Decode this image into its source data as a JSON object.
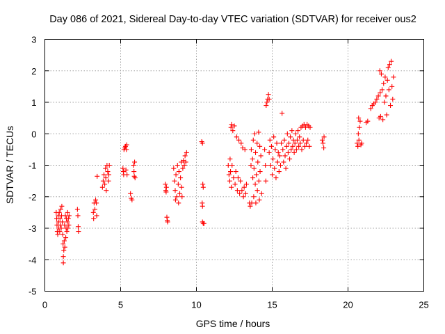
{
  "chart_data": {
    "type": "scatter",
    "title": "Day 086 of 2021, Sidereal Day-to-day VTEC variation (SDTVAR) for receiver ous2",
    "xlabel": "GPS time / hours",
    "ylabel": "SDTVAR / TECUs",
    "xlim": [
      0,
      25
    ],
    "ylim": [
      -5,
      3
    ],
    "xticks": [
      0,
      5,
      10,
      15,
      20,
      25
    ],
    "yticks": [
      -5,
      -4,
      -3,
      -2,
      -1,
      0,
      1,
      2,
      3
    ],
    "xtick_labels": [
      "0",
      "5",
      "10",
      "15",
      "20",
      "25"
    ],
    "ytick_labels": [
      "-5",
      "-4",
      "-3",
      "-2",
      "-1",
      "0",
      "1",
      "2",
      "3"
    ],
    "grid": true,
    "legend": "none",
    "marker": "plus",
    "color": "#ff0000",
    "series": [
      {
        "points": [
          [
            0.75,
            -2.5
          ],
          [
            0.78,
            -2.7
          ],
          [
            0.8,
            -2.9
          ],
          [
            0.82,
            -3.1
          ],
          [
            0.85,
            -3.2
          ],
          [
            0.88,
            -2.6
          ],
          [
            0.9,
            -2.8
          ],
          [
            0.92,
            -3.0
          ],
          [
            0.95,
            -2.5
          ],
          [
            0.98,
            -3.1
          ],
          [
            1.0,
            -2.7
          ],
          [
            1.02,
            -2.9
          ],
          [
            1.05,
            -2.4
          ],
          [
            1.08,
            -3.0
          ],
          [
            1.1,
            -2.6
          ],
          [
            1.12,
            -2.3
          ],
          [
            1.15,
            -2.8
          ],
          [
            1.18,
            -3.2
          ],
          [
            1.2,
            -3.5
          ],
          [
            1.22,
            -3.9
          ],
          [
            1.22,
            -4.1
          ],
          [
            1.25,
            -3.7
          ],
          [
            1.28,
            -3.4
          ],
          [
            1.3,
            -2.9
          ],
          [
            1.32,
            -3.6
          ],
          [
            1.35,
            -2.6
          ],
          [
            1.38,
            -3.3
          ],
          [
            1.4,
            -3.0
          ],
          [
            1.42,
            -2.7
          ],
          [
            1.45,
            -3.1
          ],
          [
            1.48,
            -2.8
          ],
          [
            1.5,
            -2.5
          ],
          [
            1.52,
            -3.0
          ],
          [
            1.55,
            -2.7
          ],
          [
            1.58,
            -2.9
          ],
          [
            1.6,
            -2.6
          ],
          [
            2.15,
            -2.4
          ],
          [
            2.18,
            -2.6
          ],
          [
            2.2,
            -2.95
          ],
          [
            2.22,
            -3.1
          ],
          [
            3.2,
            -2.5
          ],
          [
            3.22,
            -2.7
          ],
          [
            3.25,
            -2.2
          ],
          [
            3.3,
            -2.4
          ],
          [
            3.35,
            -2.1
          ],
          [
            3.4,
            -2.2
          ],
          [
            3.42,
            -2.6
          ],
          [
            3.45,
            -1.35
          ],
          [
            3.8,
            -1.7
          ],
          [
            3.85,
            -1.5
          ],
          [
            3.9,
            -1.3
          ],
          [
            3.95,
            -1.6
          ],
          [
            4.0,
            -1.1
          ],
          [
            4.02,
            -1.4
          ],
          [
            4.05,
            -1.8
          ],
          [
            4.1,
            -1.0
          ],
          [
            4.15,
            -1.2
          ],
          [
            4.2,
            -1.5
          ],
          [
            4.22,
            -1.3
          ],
          [
            4.25,
            -1.0
          ],
          [
            5.15,
            -1.1
          ],
          [
            5.18,
            -1.2
          ],
          [
            5.2,
            -1.3
          ],
          [
            5.22,
            -0.5
          ],
          [
            5.28,
            -0.45
          ],
          [
            5.32,
            -0.4
          ],
          [
            5.35,
            -1.15
          ],
          [
            5.38,
            -0.5
          ],
          [
            5.4,
            -0.35
          ],
          [
            5.42,
            -1.3
          ],
          [
            5.65,
            -1.9
          ],
          [
            5.7,
            -2.05
          ],
          [
            5.75,
            -2.1
          ],
          [
            5.85,
            -1.0
          ],
          [
            5.88,
            -1.2
          ],
          [
            5.9,
            -1.35
          ],
          [
            5.92,
            -0.9
          ],
          [
            5.95,
            -1.4
          ],
          [
            7.95,
            -1.6
          ],
          [
            7.98,
            -1.8
          ],
          [
            8.0,
            -1.85
          ],
          [
            8.02,
            -1.7
          ],
          [
            8.05,
            -2.65
          ],
          [
            8.08,
            -2.75
          ],
          [
            8.1,
            -2.8
          ],
          [
            8.5,
            -1.1
          ],
          [
            8.55,
            -1.5
          ],
          [
            8.6,
            -1.8
          ],
          [
            8.62,
            -2.1
          ],
          [
            8.65,
            -1.3
          ],
          [
            8.7,
            -2.0
          ],
          [
            8.75,
            -1.0
          ],
          [
            8.8,
            -1.6
          ],
          [
            8.82,
            -2.2
          ],
          [
            8.85,
            -1.2
          ],
          [
            8.9,
            -1.9
          ],
          [
            8.95,
            -1.4
          ],
          [
            9.0,
            -0.9
          ],
          [
            9.02,
            -1.7
          ],
          [
            9.05,
            -2.0
          ],
          [
            9.1,
            -1.1
          ],
          [
            9.15,
            -0.85
          ],
          [
            9.2,
            -1.0
          ],
          [
            9.25,
            -0.7
          ],
          [
            9.3,
            -0.9
          ],
          [
            9.35,
            -0.6
          ],
          [
            10.35,
            -0.25
          ],
          [
            10.4,
            -0.3
          ],
          [
            10.42,
            -1.6
          ],
          [
            10.45,
            -1.7
          ],
          [
            10.38,
            -2.2
          ],
          [
            10.4,
            -2.3
          ],
          [
            10.4,
            -2.8
          ],
          [
            10.45,
            -2.85
          ],
          [
            10.5,
            -2.85
          ],
          [
            12.1,
            -1.0
          ],
          [
            12.15,
            -1.3
          ],
          [
            12.2,
            -1.5
          ],
          [
            12.22,
            -0.8
          ],
          [
            12.25,
            -1.2
          ],
          [
            12.28,
            0.2
          ],
          [
            12.3,
            -1.7
          ],
          [
            12.32,
            0.3
          ],
          [
            12.35,
            -1.0
          ],
          [
            12.4,
            0.1
          ],
          [
            12.45,
            -1.4
          ],
          [
            12.5,
            0.25
          ],
          [
            12.55,
            -1.6
          ],
          [
            12.6,
            -1.2
          ],
          [
            12.65,
            -0.1
          ],
          [
            12.7,
            -1.8
          ],
          [
            12.75,
            -1.4
          ],
          [
            12.8,
            -0.2
          ],
          [
            12.85,
            -1.9
          ],
          [
            12.9,
            -1.5
          ],
          [
            12.95,
            -0.3
          ],
          [
            13.0,
            -1.8
          ],
          [
            13.05,
            -0.45
          ],
          [
            13.1,
            -2.0
          ],
          [
            13.15,
            -1.7
          ],
          [
            13.2,
            -0.5
          ],
          [
            13.25,
            -1.9
          ],
          [
            13.3,
            -1.6
          ],
          [
            13.5,
            -2.2
          ],
          [
            13.55,
            -2.3
          ],
          [
            13.6,
            -1.0
          ],
          [
            13.62,
            -0.5
          ],
          [
            13.65,
            -2.2
          ],
          [
            13.7,
            -0.8
          ],
          [
            13.72,
            -1.4
          ],
          [
            13.75,
            -0.2
          ],
          [
            13.78,
            -2.0
          ],
          [
            13.8,
            -1.1
          ],
          [
            13.85,
            0.0
          ],
          [
            13.88,
            -1.6
          ],
          [
            13.9,
            -0.6
          ],
          [
            13.92,
            -2.2
          ],
          [
            13.95,
            -1.3
          ],
          [
            14.0,
            -0.3
          ],
          [
            14.02,
            -1.8
          ],
          [
            14.05,
            -0.9
          ],
          [
            14.1,
            0.05
          ],
          [
            14.12,
            -1.5
          ],
          [
            14.15,
            -2.1
          ],
          [
            14.18,
            -0.4
          ],
          [
            14.2,
            -1.2
          ],
          [
            14.25,
            -0.7
          ],
          [
            14.3,
            -1.9
          ],
          [
            14.5,
            -0.5
          ],
          [
            14.55,
            -1.0
          ],
          [
            14.58,
            -1.5
          ],
          [
            14.6,
            0.9
          ],
          [
            14.65,
            1.0
          ],
          [
            14.7,
            1.1
          ],
          [
            14.75,
            1.25
          ],
          [
            14.8,
            1.1
          ],
          [
            14.8,
            -0.6
          ],
          [
            14.85,
            -0.2
          ],
          [
            14.9,
            -1.0
          ],
          [
            14.95,
            -0.4
          ],
          [
            15.0,
            -1.3
          ],
          [
            15.05,
            -0.8
          ],
          [
            15.1,
            -0.1
          ],
          [
            15.15,
            -1.1
          ],
          [
            15.2,
            -0.5
          ],
          [
            15.25,
            -1.4
          ],
          [
            15.3,
            -0.3
          ],
          [
            15.35,
            -0.9
          ],
          [
            15.4,
            -0.6
          ],
          [
            15.45,
            -1.2
          ],
          [
            15.5,
            -0.7
          ],
          [
            15.55,
            -1.0
          ],
          [
            15.6,
            -0.3
          ],
          [
            15.65,
            0.65
          ],
          [
            15.7,
            -0.5
          ],
          [
            15.75,
            -0.9
          ],
          [
            15.8,
            -0.2
          ],
          [
            15.85,
            -0.7
          ],
          [
            15.9,
            -1.1
          ],
          [
            15.95,
            -0.4
          ],
          [
            16.0,
            0.0
          ],
          [
            16.05,
            -0.6
          ],
          [
            16.1,
            -0.3
          ],
          [
            16.15,
            -0.8
          ],
          [
            16.2,
            -0.1
          ],
          [
            16.25,
            -0.5
          ],
          [
            16.3,
            0.1
          ],
          [
            16.35,
            -0.4
          ],
          [
            16.4,
            -0.2
          ],
          [
            16.45,
            -0.6
          ],
          [
            16.5,
            -0.3
          ],
          [
            16.55,
            0.0
          ],
          [
            16.6,
            -0.5
          ],
          [
            16.65,
            -0.2
          ],
          [
            16.7,
            0.1
          ],
          [
            16.75,
            -0.4
          ],
          [
            16.8,
            -0.1
          ],
          [
            16.85,
            -0.3
          ],
          [
            16.9,
            0.2
          ],
          [
            16.95,
            -0.5
          ],
          [
            17.0,
            0.25
          ],
          [
            17.05,
            -0.2
          ],
          [
            17.1,
            0.3
          ],
          [
            17.15,
            -0.4
          ],
          [
            17.2,
            0.2
          ],
          [
            17.25,
            -0.3
          ],
          [
            17.3,
            0.3
          ],
          [
            17.35,
            -0.2
          ],
          [
            17.4,
            0.25
          ],
          [
            17.45,
            -0.4
          ],
          [
            17.5,
            0.2
          ],
          [
            18.3,
            -0.2
          ],
          [
            18.35,
            -0.3
          ],
          [
            18.4,
            -0.45
          ],
          [
            18.42,
            -0.1
          ],
          [
            20.6,
            -0.3
          ],
          [
            20.65,
            -0.4
          ],
          [
            20.68,
            0.0
          ],
          [
            20.7,
            0.5
          ],
          [
            20.72,
            -0.2
          ],
          [
            20.75,
            0.2
          ],
          [
            20.8,
            0.4
          ],
          [
            20.85,
            -0.35
          ],
          [
            20.9,
            -0.3
          ],
          [
            21.2,
            0.35
          ],
          [
            21.3,
            0.4
          ],
          [
            21.5,
            0.8
          ],
          [
            21.6,
            0.9
          ],
          [
            21.7,
            0.95
          ],
          [
            21.8,
            1.0
          ],
          [
            21.9,
            1.1
          ],
          [
            22.0,
            1.2
          ],
          [
            22.05,
            0.5
          ],
          [
            22.1,
            2.0
          ],
          [
            22.12,
            1.3
          ],
          [
            22.15,
            0.55
          ],
          [
            22.2,
            1.9
          ],
          [
            22.25,
            1.4
          ],
          [
            22.3,
            0.45
          ],
          [
            22.35,
            1.6
          ],
          [
            22.4,
            1.0
          ],
          [
            22.45,
            1.8
          ],
          [
            22.5,
            1.2
          ],
          [
            22.55,
            0.6
          ],
          [
            22.6,
            1.7
          ],
          [
            22.65,
            2.1
          ],
          [
            22.7,
            1.4
          ],
          [
            22.75,
            2.2
          ],
          [
            22.8,
            0.9
          ],
          [
            22.85,
            2.3
          ],
          [
            22.9,
            1.5
          ],
          [
            22.95,
            1.1
          ],
          [
            23.0,
            1.8
          ]
        ]
      }
    ]
  }
}
